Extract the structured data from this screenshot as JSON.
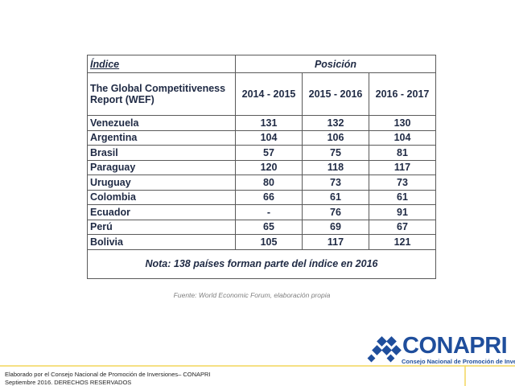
{
  "table": {
    "header": {
      "index_label": "Índice",
      "position_label": "Posición",
      "report_label": "The Global Competitiveness Report (WEF)",
      "years": [
        "2014 - 2015",
        "2015 - 2016",
        "2016 - 2017"
      ]
    },
    "rows": [
      [
        "Venezuela",
        131,
        132,
        130
      ],
      [
        "Argentina",
        104,
        106,
        104
      ],
      [
        "Brasil",
        57,
        75,
        81
      ],
      [
        "Paraguay",
        120,
        118,
        117
      ],
      [
        "Uruguay",
        80,
        73,
        73
      ],
      [
        "Colombia",
        66,
        61,
        61
      ],
      [
        "Ecuador",
        "-",
        76,
        91
      ],
      [
        "Perú",
        65,
        69,
        67
      ],
      [
        "Bolivia",
        105,
        117,
        121
      ]
    ],
    "note": "Nota: 138 países forman parte del índice en 2016"
  },
  "source": "Fuente: World Economic Forum, elaboración propia",
  "logo": {
    "name": "CONAPRI",
    "subtitle": "Consejo Nacional de Promoción de Inversiones"
  },
  "footer": [
    "Elaborado por el Consejo Nacional de Promoción de Inversiones– CONAPRI",
    "Septiembre 2016. DERECHOS RESERVADOS"
  ]
}
